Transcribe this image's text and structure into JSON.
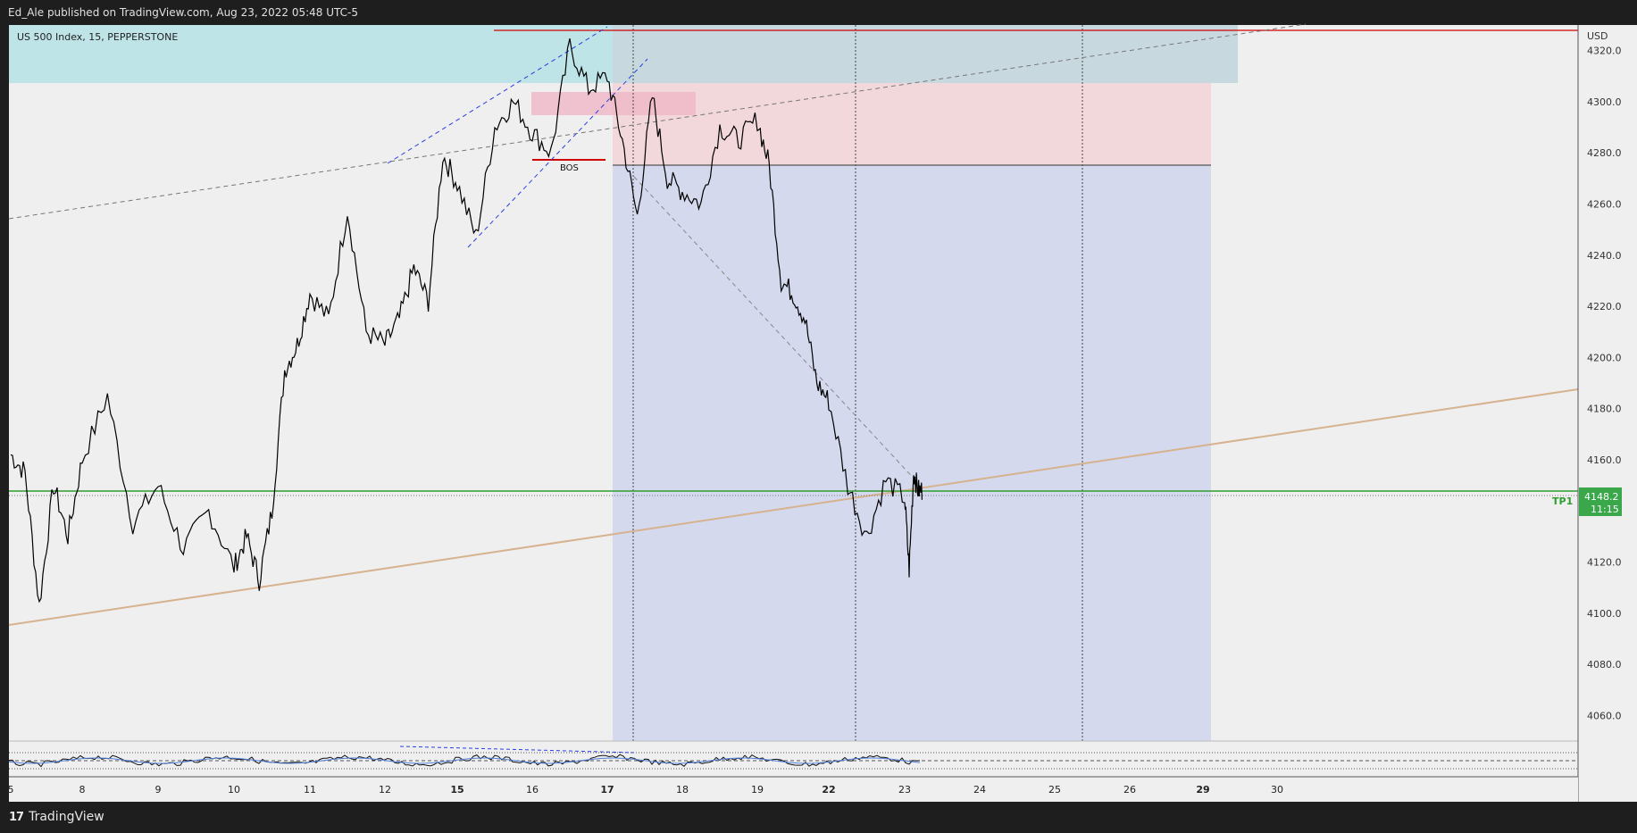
{
  "header": {
    "publish_text": "Ed_Ale published on TradingView.com, Aug 23, 2022 05:48 UTC-5"
  },
  "footer": {
    "brand": "TradingView",
    "logo_icon": "tradingview-logo-icon"
  },
  "chart_data": {
    "type": "line",
    "title": "US 500 Index, 15, PEPPERSTONE",
    "ylabel": "USD",
    "ylim": [
      4050,
      4330
    ],
    "y_ticks": [
      "4320.0",
      "4300.0",
      "4280.0",
      "4260.0",
      "4240.0",
      "4220.0",
      "4200.0",
      "4180.0",
      "4160.0",
      "4140.0",
      "4120.0",
      "4100.0",
      "4080.0",
      "4060.0"
    ],
    "x_ticks": [
      "5",
      "8",
      "9",
      "10",
      "11",
      "12",
      "15",
      "16",
      "17",
      "18",
      "19",
      "22",
      "23",
      "24",
      "25",
      "26",
      "29",
      "30"
    ],
    "bold_x_ticks": [
      "15",
      "17",
      "22",
      "29"
    ],
    "series": [
      {
        "x": [
          "5",
          "8",
          "9",
          "10",
          "11",
          "12",
          "15",
          "16",
          "17",
          "18",
          "19",
          "22",
          "23"
        ],
        "values": [
          4162,
          4103,
          4185,
          4118,
          4125,
          4258,
          4210,
          4280,
          4322,
          4300,
          4293,
          4152,
          4117
        ],
        "detail": [
          [
            "5",
            4162
          ],
          [
            "5",
            4155
          ],
          [
            "5",
            4103
          ],
          [
            "5",
            4150
          ],
          [
            "5",
            4130
          ],
          [
            "8",
            4160
          ],
          [
            "8",
            4185
          ],
          [
            "8",
            4135
          ],
          [
            "9",
            4150
          ],
          [
            "9",
            4125
          ],
          [
            "9",
            4140
          ],
          [
            "10",
            4118
          ],
          [
            "10",
            4130
          ],
          [
            "10",
            4113
          ],
          [
            "10",
            4140
          ],
          [
            "10",
            4195
          ],
          [
            "10",
            4205
          ],
          [
            "11",
            4225
          ],
          [
            "11",
            4215
          ],
          [
            "11",
            4258
          ],
          [
            "11",
            4210
          ],
          [
            "12",
            4205
          ],
          [
            "12",
            4215
          ],
          [
            "12",
            4235
          ],
          [
            "12",
            4222
          ],
          [
            "12",
            4279
          ],
          [
            "15",
            4268
          ],
          [
            "15",
            4247
          ],
          [
            "15",
            4290
          ],
          [
            "15",
            4300
          ],
          [
            "16",
            4288
          ],
          [
            "16",
            4280
          ],
          [
            "16",
            4322
          ],
          [
            "16",
            4305
          ],
          [
            "17",
            4310
          ],
          [
            "17",
            4285
          ],
          [
            "17",
            4255
          ],
          [
            "17",
            4302
          ],
          [
            "17",
            4270
          ],
          [
            "18",
            4265
          ],
          [
            "18",
            4260
          ],
          [
            "18",
            4290
          ],
          [
            "18",
            4285
          ],
          [
            "19",
            4293
          ],
          [
            "19",
            4275
          ],
          [
            "19",
            4230
          ],
          [
            "19",
            4225
          ],
          [
            "19",
            4215
          ],
          [
            "19",
            4190
          ],
          [
            "22",
            4183
          ],
          [
            "22",
            4150
          ],
          [
            "22",
            4130
          ],
          [
            "22",
            4152
          ],
          [
            "23",
            4145
          ],
          [
            "23",
            4117
          ],
          [
            "23",
            4155
          ],
          [
            "23",
            4148
          ]
        ]
      }
    ],
    "last_price": "4148.2",
    "last_price_timer": "11:15",
    "tp_label": "TP1",
    "tp_level": 4150,
    "annotations": [
      "BOS"
    ],
    "bos_level": 4277,
    "entry_line_level": 4276,
    "resistance_line_level": 4327,
    "zones": {
      "supply": [
        4308,
        4330
      ],
      "stop_zone": [
        4276,
        4308
      ],
      "target_zone": [
        4050,
        4276
      ],
      "fvg": [
        4296,
        4304
      ]
    },
    "colors": {
      "price": "#000000",
      "tp_line": "#2e9e2e",
      "supply_zone": "#bfe4e8",
      "stop_zone": "#f2d4d8",
      "target_zone": "#d5d9ee",
      "fvg": "#f0b8c8",
      "bos": "#d00000",
      "channel": "#2b3fe0",
      "trendline": "#d7b28f",
      "last_price_badge": "#3aa84a"
    },
    "grid": false,
    "legend": "none"
  }
}
